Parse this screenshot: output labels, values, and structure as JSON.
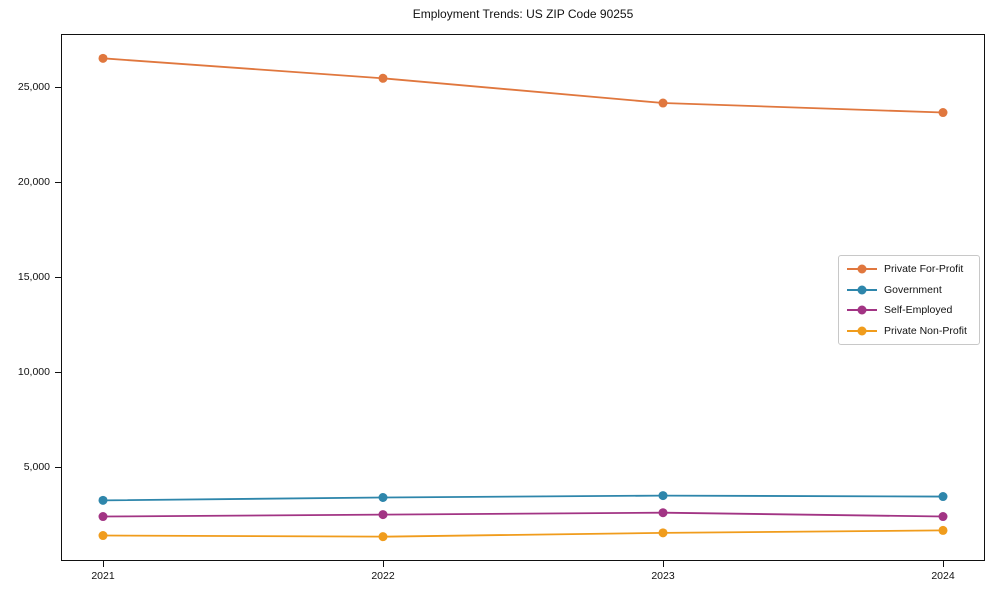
{
  "chart_data": {
    "type": "line",
    "title": "Employment Trends: US ZIP Code 90255",
    "x": [
      2021,
      2022,
      2023,
      2024
    ],
    "x_tick_labels": [
      "2021",
      "2022",
      "2023",
      "2024"
    ],
    "series": [
      {
        "name": "Private For-Profit",
        "color": "#e0773e",
        "values": [
          26500,
          25450,
          24150,
          23650
        ]
      },
      {
        "name": "Government",
        "color": "#2e86ab",
        "values": [
          3250,
          3400,
          3500,
          3450
        ]
      },
      {
        "name": "Self-Employed",
        "color": "#a23484",
        "values": [
          2400,
          2500,
          2600,
          2400
        ]
      },
      {
        "name": "Private Non-Profit",
        "color": "#f09c1c",
        "values": [
          1400,
          1340,
          1540,
          1670
        ]
      }
    ],
    "xlabel": "",
    "ylabel": "",
    "xlim": [
      2020.85,
      2024.15
    ],
    "ylim": [
      60,
      27780
    ],
    "yticks": [
      5000,
      10000,
      15000,
      20000,
      25000
    ],
    "ytick_labels": [
      "5,000",
      "10,000",
      "15,000",
      "20,000",
      "25,000"
    ],
    "grid": false,
    "marker": "circle",
    "legend": {
      "position": "center-right",
      "entries": [
        "Private For-Profit",
        "Government",
        "Self-Employed",
        "Private Non-Profit"
      ]
    }
  }
}
